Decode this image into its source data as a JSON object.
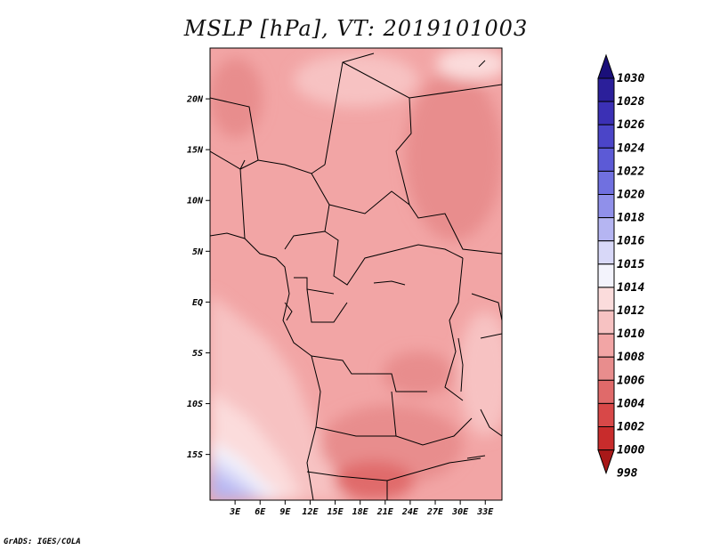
{
  "title": "MSLP [hPa], VT: 2019101003",
  "footer": "GrADS: IGES/COLA",
  "map": {
    "lon_range": [
      0,
      35
    ],
    "lat_range": [
      -19.5,
      25
    ],
    "lat_ticks": [
      "20N",
      "15N",
      "10N",
      "5N",
      "EQ",
      "5S",
      "10S",
      "15S"
    ],
    "lat_tick_values": [
      20,
      15,
      10,
      5,
      0,
      -5,
      -10,
      -15
    ],
    "lon_ticks": [
      "3E",
      "6E",
      "9E",
      "12E",
      "15E",
      "18E",
      "21E",
      "24E",
      "27E",
      "30E",
      "33E"
    ],
    "lon_tick_values": [
      3,
      6,
      9,
      12,
      15,
      18,
      21,
      24,
      27,
      30,
      33
    ]
  },
  "colorbar": {
    "labels": [
      "1030",
      "1028",
      "1026",
      "1024",
      "1022",
      "1020",
      "1018",
      "1016",
      "1015",
      "1014",
      "1012",
      "1010",
      "1008",
      "1006",
      "1004",
      "1002",
      "1000",
      "998"
    ],
    "colors": [
      "#1a0f7a",
      "#2b1f9a",
      "#3b30b5",
      "#4b45c8",
      "#5c5ad6",
      "#7070e0",
      "#9090ea",
      "#b5b5f2",
      "#d8d8f8",
      "#f3f3fc",
      "#fbdcdc",
      "#f7c2c2",
      "#f2a5a5",
      "#e88d8d",
      "#e06a6a",
      "#d84848",
      "#c82c2c",
      "#a81818"
    ]
  }
}
